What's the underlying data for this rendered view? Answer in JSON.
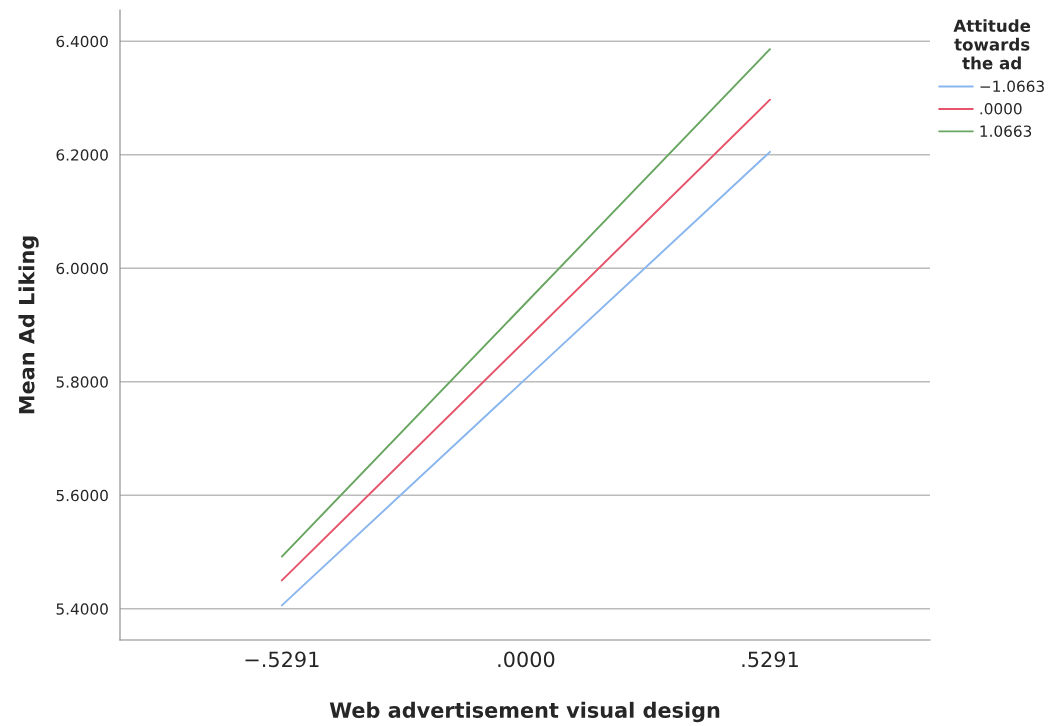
{
  "chart_data": {
    "type": "line",
    "xlabel": "Web advertisement visual design",
    "ylabel": "Mean Ad Liking",
    "legend_title": "Attitude towards the ad",
    "x": [
      -0.5291,
      0.5291
    ],
    "series": [
      {
        "name": "−1.0663",
        "color": "#8ab6ee",
        "values": [
          5.406,
          6.205
        ]
      },
      {
        "name": ".0000",
        "color": "#e5546a",
        "values": [
          5.45,
          6.297
        ]
      },
      {
        "name": "1.0663",
        "color": "#68a661",
        "values": [
          5.492,
          6.386
        ]
      }
    ],
    "xlim": [
      -0.88,
      0.876
    ],
    "xticks": [
      {
        "value": -0.5291,
        "label": "−.5291"
      },
      {
        "value": 0,
        "label": ".0000"
      },
      {
        "value": 0.5291,
        "label": ".5291"
      }
    ],
    "ylim": [
      5.345,
      6.455
    ],
    "yticks": [
      {
        "value": 5.4,
        "label": "5.4000"
      },
      {
        "value": 5.6,
        "label": "5.6000"
      },
      {
        "value": 5.8,
        "label": "5.8000"
      },
      {
        "value": 6.0,
        "label": "6.0000"
      },
      {
        "value": 6.2,
        "label": "6.2000"
      },
      {
        "value": 6.4,
        "label": "6.4000"
      }
    ],
    "grid": "y",
    "legend": "top right",
    "marker": "none",
    "line_style": "solid"
  }
}
